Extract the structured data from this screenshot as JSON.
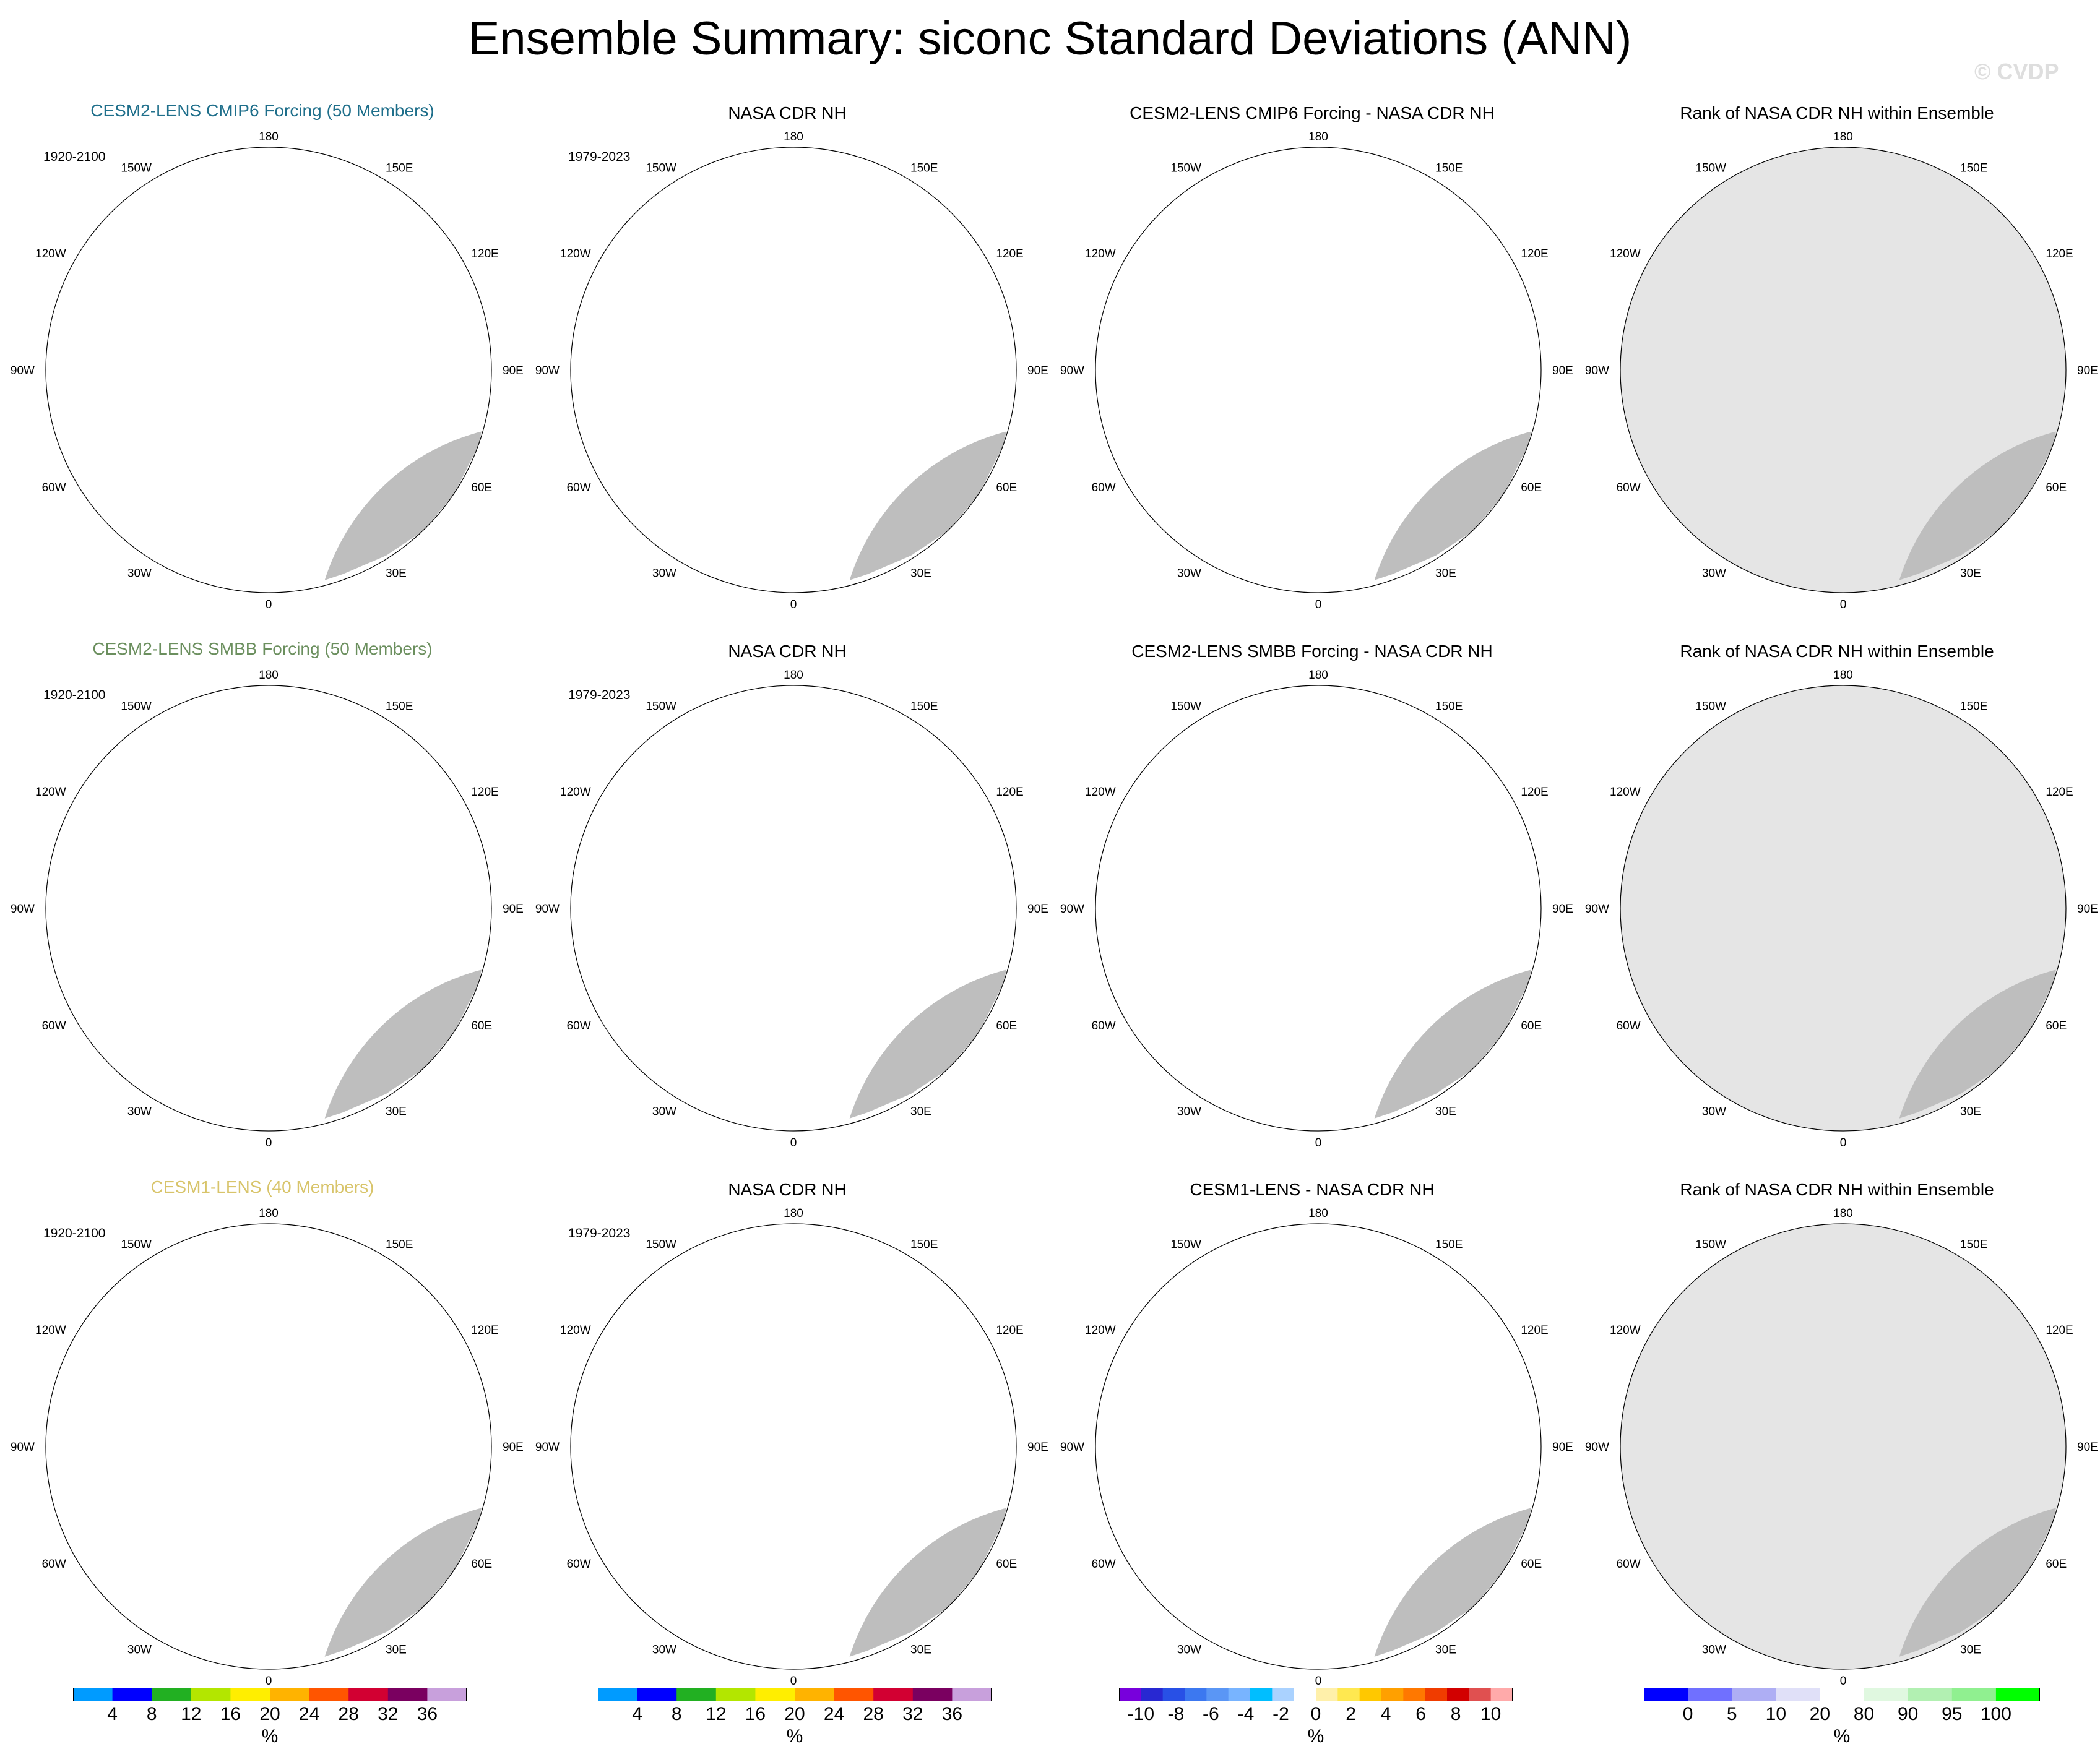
{
  "figure": {
    "title": "Ensemble Summary: siconc Standard Deviations (ANN)",
    "watermark": "© CVDP"
  },
  "colors": {
    "land": "#bebebe",
    "ocean": "#ffffff",
    "rank_bg": "#e5e5e5",
    "circle_outline": "#000000",
    "ensemble_title_colors": [
      "#1f6f8b",
      "#6b8f5e",
      "#d8c46a"
    ]
  },
  "longitude_labels": [
    "180",
    "150W",
    "150E",
    "120W",
    "120E",
    "90W",
    "90E",
    "60W",
    "60E",
    "30W",
    "30E",
    "0"
  ],
  "chart_data": [
    {
      "type": "heatmap",
      "row": 1,
      "panels": [
        {
          "title": "CESM2-LENS CMIP6 Forcing (50 Members)",
          "period": "1920-2100",
          "kind": "std",
          "title_color": "#1f6f8b"
        },
        {
          "title": "NASA CDR NH",
          "period": "1979-2023",
          "kind": "std_obs"
        },
        {
          "title": "CESM2-LENS CMIP6 Forcing - NASA CDR NH",
          "period": "",
          "kind": "diff"
        },
        {
          "title": "Rank of NASA CDR NH within Ensemble",
          "period": "",
          "kind": "rank"
        }
      ]
    },
    {
      "type": "heatmap",
      "row": 2,
      "panels": [
        {
          "title": "CESM2-LENS SMBB Forcing (50 Members)",
          "period": "1920-2100",
          "kind": "std",
          "title_color": "#6b8f5e"
        },
        {
          "title": "NASA CDR NH",
          "period": "1979-2023",
          "kind": "std_obs"
        },
        {
          "title": "CESM2-LENS SMBB Forcing - NASA CDR NH",
          "period": "",
          "kind": "diff"
        },
        {
          "title": "Rank of NASA CDR NH within Ensemble",
          "period": "",
          "kind": "rank"
        }
      ]
    },
    {
      "type": "heatmap",
      "row": 3,
      "panels": [
        {
          "title": "CESM1-LENS (40 Members)",
          "period": "1920-2100",
          "kind": "std",
          "title_color": "#d8c46a"
        },
        {
          "title": "NASA CDR NH",
          "period": "1979-2023",
          "kind": "std_obs"
        },
        {
          "title": "CESM1-LENS - NASA CDR NH",
          "period": "",
          "kind": "diff"
        },
        {
          "title": "Rank of NASA CDR NH within Ensemble",
          "period": "",
          "kind": "rank"
        }
      ]
    }
  ],
  "colorbars": [
    {
      "name": "std-colorbar-1",
      "unit": "%",
      "ticks": [
        "4",
        "8",
        "12",
        "16",
        "20",
        "24",
        "28",
        "32",
        "36"
      ],
      "colors": [
        "#009bff",
        "#0000ff",
        "#22b022",
        "#b3e600",
        "#ffee00",
        "#ffb300",
        "#ff5500",
        "#d20032",
        "#7a0060",
        "#c8a0dc"
      ]
    },
    {
      "name": "std-colorbar-2",
      "unit": "%",
      "ticks": [
        "4",
        "8",
        "12",
        "16",
        "20",
        "24",
        "28",
        "32",
        "36"
      ],
      "colors": [
        "#009bff",
        "#0000ff",
        "#22b022",
        "#b3e600",
        "#ffee00",
        "#ffb300",
        "#ff5500",
        "#d20032",
        "#7a0060",
        "#c8a0dc"
      ]
    },
    {
      "name": "diff-colorbar",
      "unit": "%",
      "ticks": [
        "-10",
        "-8",
        "-6",
        "-4",
        "-2",
        "0",
        "2",
        "4",
        "6",
        "8",
        "10"
      ],
      "colors": [
        "#7800dc",
        "#2828d2",
        "#2850e6",
        "#3c78f0",
        "#5a96f5",
        "#78b4ff",
        "#00beff",
        "#aad2ff",
        "#ffffff",
        "#fff0aa",
        "#ffe850",
        "#ffc800",
        "#ffa000",
        "#ff7800",
        "#f03c00",
        "#d20000",
        "#e05050",
        "#ffaaaa"
      ]
    },
    {
      "name": "rank-colorbar",
      "unit": "%",
      "ticks": [
        "0",
        "5",
        "10",
        "20",
        "80",
        "90",
        "95",
        "100"
      ],
      "colors": [
        "#0000ff",
        "#7070ff",
        "#aeaef4",
        "#e0e0f8",
        "#ffffff",
        "#e0f8e0",
        "#b2f0b2",
        "#90f090",
        "#00ff00"
      ]
    }
  ]
}
